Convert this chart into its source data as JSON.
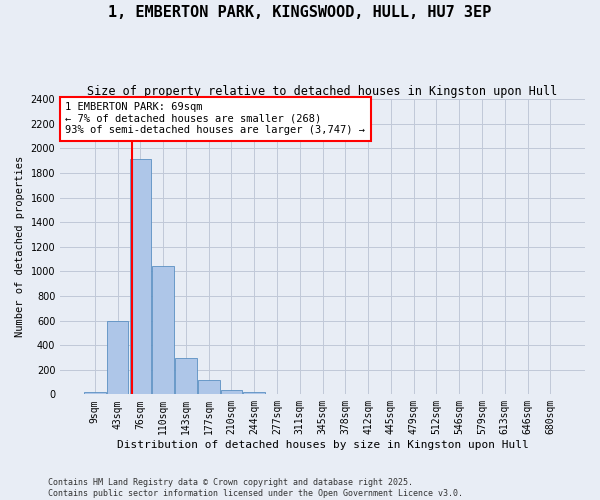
{
  "title": "1, EMBERTON PARK, KINGSWOOD, HULL, HU7 3EP",
  "subtitle": "Size of property relative to detached houses in Kingston upon Hull",
  "xlabel": "Distribution of detached houses by size in Kingston upon Hull",
  "ylabel": "Number of detached properties",
  "categories": [
    "9sqm",
    "43sqm",
    "76sqm",
    "110sqm",
    "143sqm",
    "177sqm",
    "210sqm",
    "244sqm",
    "277sqm",
    "311sqm",
    "345sqm",
    "378sqm",
    "412sqm",
    "445sqm",
    "479sqm",
    "512sqm",
    "546sqm",
    "579sqm",
    "613sqm",
    "646sqm",
    "680sqm"
  ],
  "values": [
    15,
    600,
    1910,
    1040,
    295,
    115,
    38,
    18,
    5,
    0,
    0,
    0,
    0,
    0,
    0,
    0,
    0,
    0,
    0,
    0,
    0
  ],
  "bar_color": "#aec6e8",
  "bar_edge_color": "#5a8fc2",
  "vline_x": 1.65,
  "vline_color": "red",
  "annotation_text": "1 EMBERTON PARK: 69sqm\n← 7% of detached houses are smaller (268)\n93% of semi-detached houses are larger (3,747) →",
  "annotation_box_color": "white",
  "annotation_box_edge_color": "red",
  "ylim": [
    0,
    2400
  ],
  "yticks": [
    0,
    200,
    400,
    600,
    800,
    1000,
    1200,
    1400,
    1600,
    1800,
    2000,
    2200,
    2400
  ],
  "grid_color": "#c0c8d8",
  "background_color": "#e8edf5",
  "footer_text": "Contains HM Land Registry data © Crown copyright and database right 2025.\nContains public sector information licensed under the Open Government Licence v3.0.",
  "title_fontsize": 11,
  "subtitle_fontsize": 8.5,
  "xlabel_fontsize": 8,
  "ylabel_fontsize": 7.5,
  "tick_fontsize": 7,
  "annotation_fontsize": 7.5,
  "footer_fontsize": 6
}
